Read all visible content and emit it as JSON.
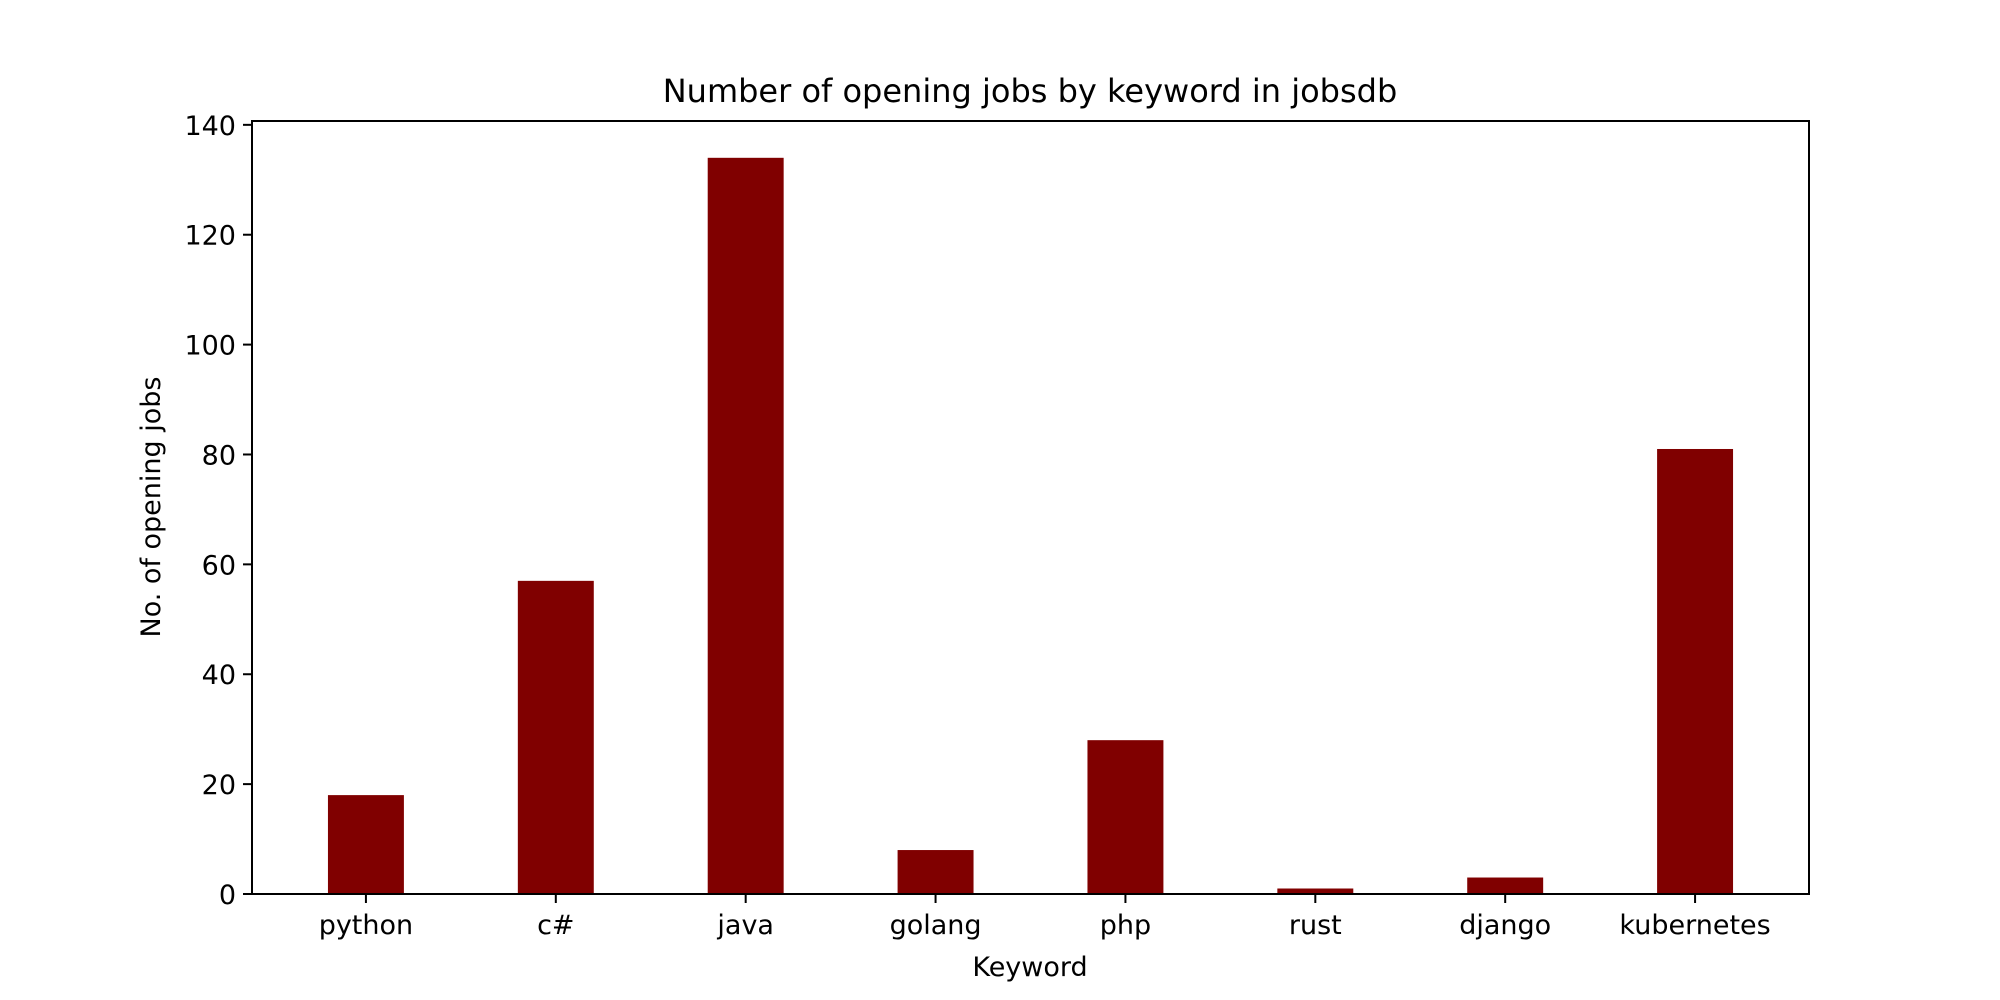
{
  "chart_data": {
    "type": "bar",
    "title": "Number of opening jobs by keyword in jobsdb",
    "xlabel": "Keyword",
    "ylabel": "No. of opening jobs",
    "categories": [
      "python",
      "c#",
      "java",
      "golang",
      "php",
      "rust",
      "django",
      "kubernetes"
    ],
    "values": [
      18,
      57,
      134,
      8,
      28,
      1,
      3,
      81
    ],
    "ylim": [
      0,
      140.7
    ],
    "yticks": [
      0,
      20,
      40,
      60,
      80,
      100,
      120,
      140
    ],
    "ytick_labels": [
      "0",
      "20",
      "40",
      "60",
      "80",
      "100",
      "120",
      "140"
    ],
    "bar_color": "#800000",
    "grid": false
  }
}
